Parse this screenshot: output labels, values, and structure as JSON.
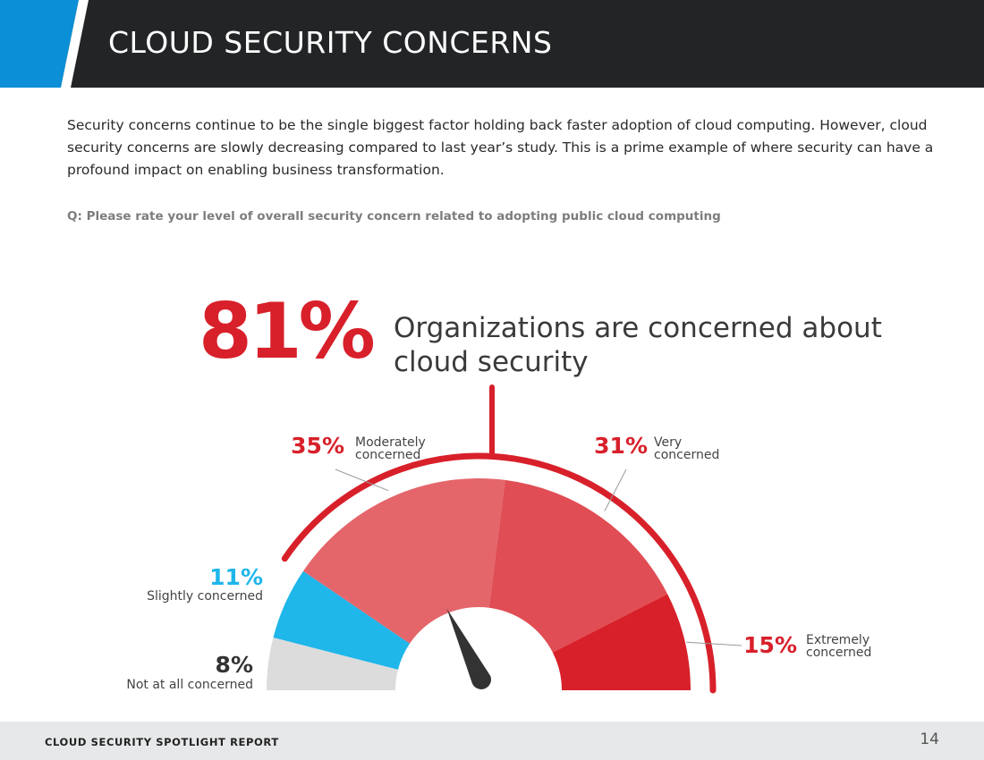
{
  "header": {
    "title": "CLOUD SECURITY CONCERNS",
    "accent_color": "#0b8fd6"
  },
  "intro_text": "Security concerns continue to be the single biggest factor holding back faster adoption of cloud computing. However, cloud security concerns are slowly decreasing compared to last year’s study. This is a prime example of where security can have a profound impact on enabling business transformation.",
  "question": "Q: Please rate your level of overall security concern related to adopting public cloud computing",
  "headline": {
    "value": "81%",
    "text": "Organizations are concerned about cloud security"
  },
  "chart_data": {
    "type": "gauge",
    "categories": [
      "Not at all concerned",
      "Slightly concerned",
      "Moderately concerned",
      "Very concerned",
      "Extremely concerned"
    ],
    "values": [
      8,
      11,
      35,
      31,
      15
    ],
    "unit": "%",
    "colors": [
      "#dcdcdc",
      "#1fb6ea",
      "#e4666b",
      "#e04d54",
      "#d8202a"
    ],
    "label_colors": [
      "#333333",
      "#1fb6ea",
      "#d8202a",
      "#d8202a",
      "#d8202a"
    ],
    "label_lines": [
      [
        "Not at all  concerned"
      ],
      [
        "Slightly concerned"
      ],
      [
        "Moderately",
        "concerned"
      ],
      [
        "Very",
        "concerned"
      ],
      [
        "Extremely",
        "concerned"
      ]
    ],
    "highlight": {
      "value": 81,
      "label": "Organizations are concerned about cloud security",
      "color": "#d8202a"
    },
    "needle_color": "#333333"
  },
  "footer": {
    "label": "CLOUD SECURITY SPOTLIGHT REPORT",
    "page_number": "14"
  }
}
